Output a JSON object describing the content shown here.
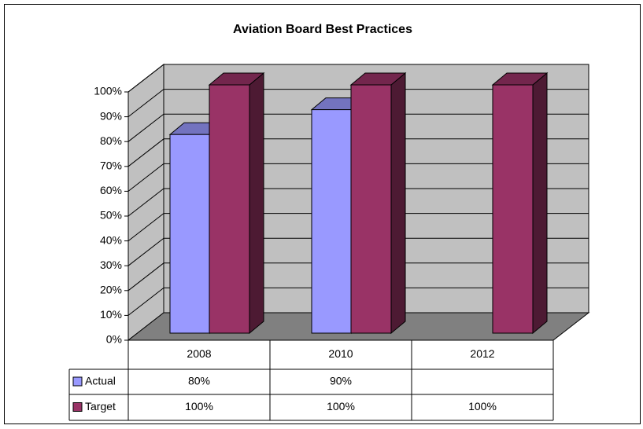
{
  "chart_data": {
    "type": "bar3d",
    "title": "Aviation Board Best Practices",
    "categories": [
      "2008",
      "2010",
      "2012"
    ],
    "series": [
      {
        "name": "Actual",
        "color": "#9999ff",
        "values": [
          80,
          90,
          null
        ],
        "value_labels": [
          "80%",
          "90%",
          null
        ]
      },
      {
        "name": "Target",
        "color": "#993366",
        "values": [
          100,
          100,
          100
        ],
        "value_labels": [
          "100%",
          "100%",
          "100%"
        ]
      }
    ],
    "ylim": [
      0,
      100
    ],
    "yticks": [
      {
        "value": 0,
        "label": "0%"
      },
      {
        "value": 10,
        "label": "10%"
      },
      {
        "value": 20,
        "label": "20%"
      },
      {
        "value": 30,
        "label": "30%"
      },
      {
        "value": 40,
        "label": "40%"
      },
      {
        "value": 50,
        "label": "50%"
      },
      {
        "value": 60,
        "label": "60%"
      },
      {
        "value": 70,
        "label": "70%"
      },
      {
        "value": 80,
        "label": "80%"
      },
      {
        "value": 90,
        "label": "90%"
      },
      {
        "value": 100,
        "label": "100%"
      }
    ],
    "grid": true,
    "data_table": true
  }
}
